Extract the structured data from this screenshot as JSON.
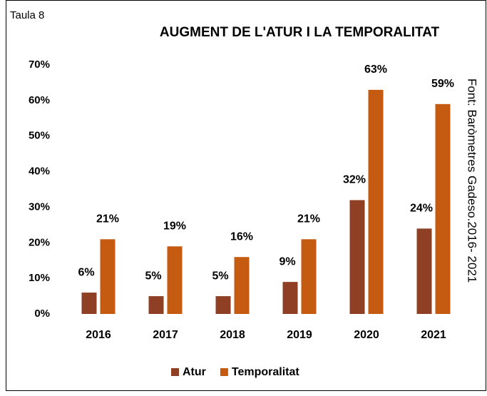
{
  "chart_data": {
    "type": "bar",
    "label": "Taula 8",
    "title": "AUGMENT DE L'ATUR I LA TEMPORALITAT",
    "source": "Font: Baròmetres Gadeso.2016- 2021",
    "categories": [
      "2016",
      "2017",
      "2018",
      "2019",
      "2020",
      "2021"
    ],
    "series": [
      {
        "name": "Atur",
        "color": "#8e3f24",
        "values": [
          6,
          5,
          5,
          9,
          32,
          24
        ],
        "value_labels": [
          "6%",
          "5%",
          "5%",
          "9%",
          "32%",
          "24%"
        ]
      },
      {
        "name": "Temporalitat",
        "color": "#c55a11",
        "values": [
          21,
          19,
          16,
          21,
          63,
          59
        ],
        "value_labels": [
          "21%",
          "19%",
          "16%",
          "21%",
          "63%",
          "59%"
        ]
      }
    ],
    "ylim": [
      0,
      70
    ],
    "yticks": [
      {
        "value": 0,
        "label": "0%"
      },
      {
        "value": 10,
        "label": "10%"
      },
      {
        "value": 20,
        "label": "20%"
      },
      {
        "value": 30,
        "label": "30%"
      },
      {
        "value": 40,
        "label": "40%"
      },
      {
        "value": 50,
        "label": "50%"
      },
      {
        "value": 60,
        "label": "60%"
      },
      {
        "value": 70,
        "label": "70%"
      }
    ],
    "grid": false,
    "legend": "bottom"
  }
}
